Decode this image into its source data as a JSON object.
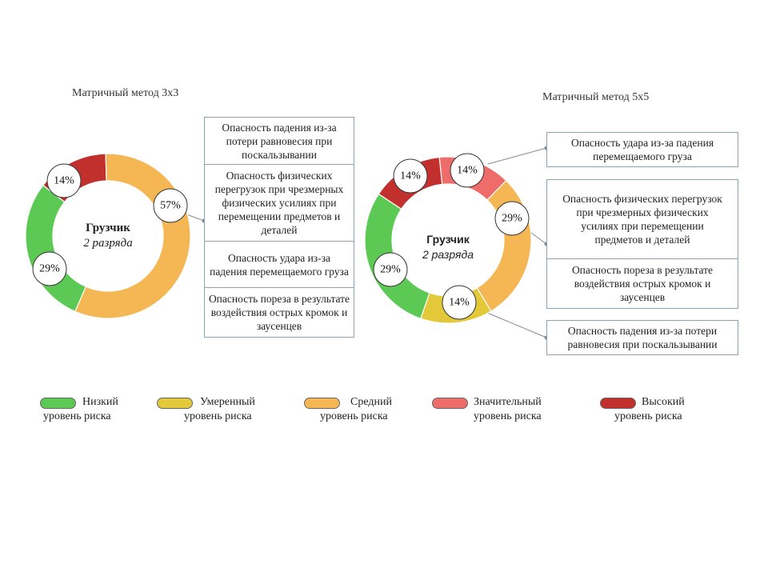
{
  "colors": {
    "low": "#5dc955",
    "moderate": "#e3c93a",
    "medium": "#f5b654",
    "significant": "#ee6d6a",
    "high": "#c2302d"
  },
  "left": {
    "title": "Матричный метод 3х3",
    "center_title": "Грузчик",
    "center_subtitle": "2 разряда",
    "labels": {
      "high": "14%",
      "medium": "57%",
      "low": "29%"
    },
    "hazards": [
      "Опасность падения из-за потери равновесия при поскальзывании",
      "Опасность физических перегрузок при чрезмерных физических усилиях при перемещении предметов и деталей",
      "Опасность удара из-за падения перемещаемого груза",
      "Опасность пореза в результате воздействия острых кромок и заусенцев"
    ]
  },
  "right": {
    "title": "Матричный метод 5х5",
    "center_title": "Грузчик",
    "center_subtitle": "2 разряда",
    "labels": {
      "high": "14%",
      "significant": "14%",
      "medium": "29%",
      "moderate": "14%",
      "low": "29%"
    },
    "box_top": "Опасность удара из-за падения перемещаемого груза",
    "box_middle": [
      "Опасность физических перегрузок при чрезмерных физических усилиях при перемещении предметов и деталей",
      "Опасность пореза в результате воздействия острых кромок и заусенцев"
    ],
    "box_bottom": "Опасность падения из-за потери равновесия при поскальзывании"
  },
  "legend": [
    {
      "key": "low",
      "line1": "Низкий",
      "line2": "уровень риска"
    },
    {
      "key": "moderate",
      "line1": "Умеренный",
      "line2": "уровень риска"
    },
    {
      "key": "medium",
      "line1": "Средний",
      "line2": "уровень риска"
    },
    {
      "key": "significant",
      "line1": "Значительный",
      "line2": "уровень риска"
    },
    {
      "key": "high",
      "line1": "Высокий",
      "line2": "уровень риска"
    }
  ],
  "chart_data": [
    {
      "type": "pie",
      "title": "Матричный метод 3х3",
      "center_label": "Грузчик 2 разряда",
      "categories": [
        "Высокий уровень риска",
        "Средний уровень риска",
        "Низкий уровень риска"
      ],
      "values": [
        14,
        57,
        29
      ],
      "unit": "%",
      "annotations": [
        "Опасность падения из-за потери равновесия при поскальзывании",
        "Опасность физических перегрузок при чрезмерных физических усилиях при перемещении предметов и деталей",
        "Опасность удара из-за падения перемещаемого груза",
        "Опасность пореза в результате воздействия острых кромок и заусенцев"
      ]
    },
    {
      "type": "pie",
      "title": "Матричный метод 5х5",
      "center_label": "Грузчик 2 разряда",
      "categories": [
        "Значительный уровень риска",
        "Средний уровень риска",
        "Умеренный уровень риска",
        "Низкий уровень риска",
        "Высокий уровень риска"
      ],
      "values": [
        14,
        29,
        14,
        29,
        14
      ],
      "unit": "%",
      "annotations": [
        {
          "segment": "Значительный уровень риска",
          "text": "Опасность удара из-за падения перемещаемого груза"
        },
        {
          "segment": "Средний уровень риска",
          "text": "Опасность физических перегрузок при чрезмерных физических усилиях при перемещении предметов и деталей; Опасность пореза в результате воздействия острых кромок и заусенцев"
        },
        {
          "segment": "Умеренный уровень риска",
          "text": "Опасность падения из-за потери равновесия при поскальзывании"
        }
      ],
      "legend_position": "bottom"
    }
  ]
}
